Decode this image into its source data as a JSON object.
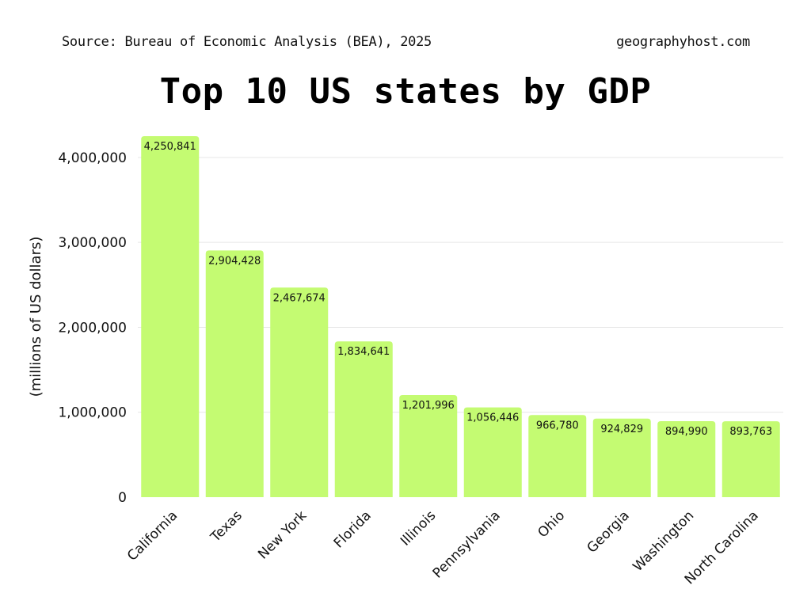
{
  "header": {
    "source": "Source: Bureau of Economic Analysis (BEA), 2025",
    "site": "geographyhost.com"
  },
  "colors": {
    "bar": "#c4fb72",
    "grid": "#e6e6e6",
    "text": "#111111"
  },
  "chart_data": {
    "type": "bar",
    "title": "Top 10 US states by GDP",
    "xlabel": "",
    "ylabel": "(millions of US dollars)",
    "categories": [
      "California",
      "Texas",
      "New York",
      "Florida",
      "Illinois",
      "Pennsylvania",
      "Ohio",
      "Georgia",
      "Washington",
      "North Carolina"
    ],
    "values": [
      4250841,
      2904428,
      2467674,
      1834641,
      1201996,
      1056446,
      966780,
      924829,
      894990,
      893763
    ],
    "value_labels": [
      "4,250,841",
      "2,904,428",
      "2,467,674",
      "1,834,641",
      "1,201,996",
      "1,056,446",
      "966,780",
      "924,829",
      "894,990",
      "893,763"
    ],
    "yticks": [
      0,
      1000000,
      2000000,
      3000000,
      4000000
    ],
    "ytick_labels": [
      "0",
      "1,000,000",
      "2,000,000",
      "3,000,000",
      "4,000,000"
    ],
    "ylim": [
      0,
      4250841
    ],
    "grid": true,
    "legend": "none"
  }
}
